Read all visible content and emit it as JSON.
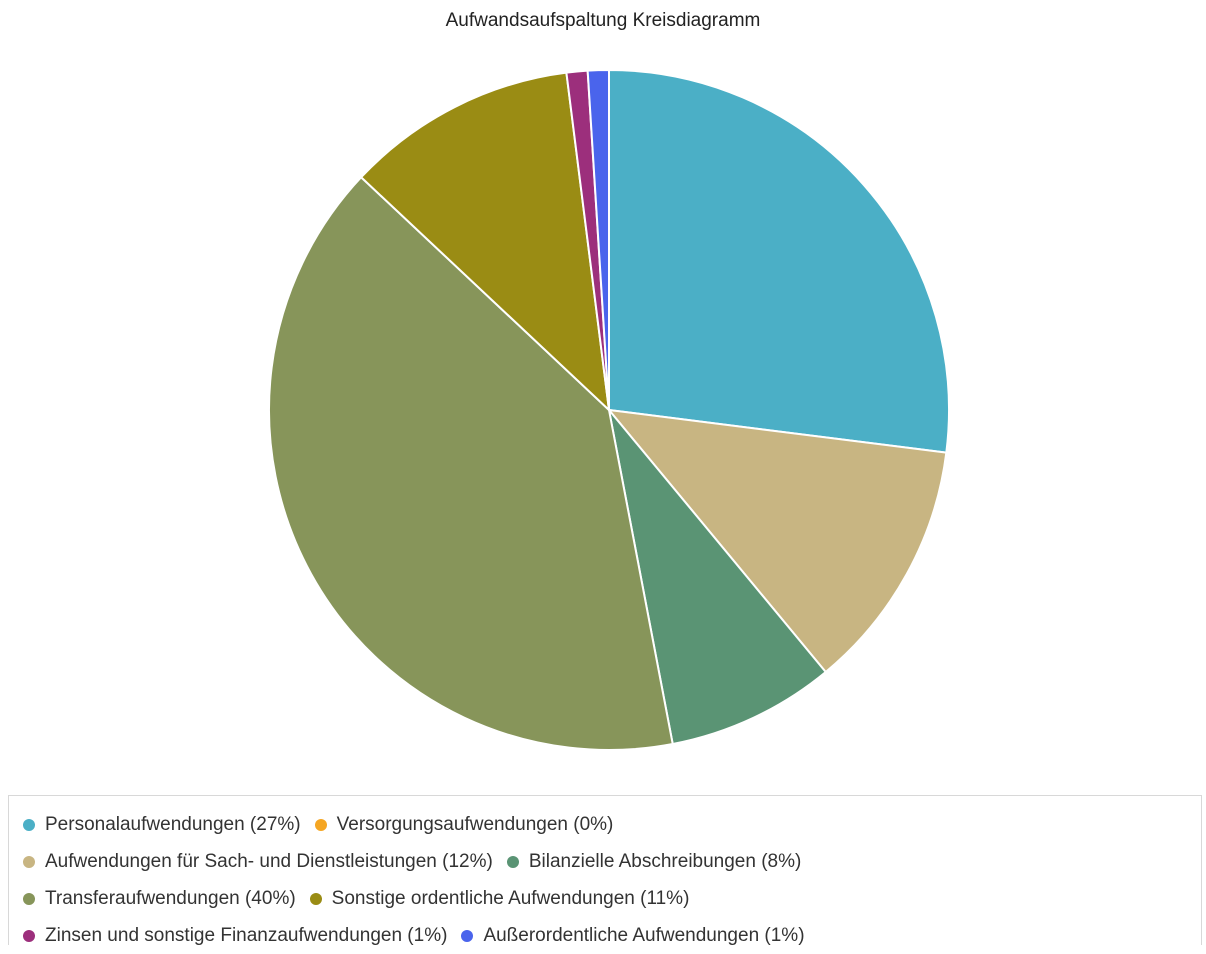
{
  "chart_data": {
    "type": "pie",
    "title": "Aufwandsaufspaltung Kreisdiagramm",
    "legend_position": "bottom",
    "slices": [
      {
        "label": "Personalaufwendungen (27%)",
        "value": 27,
        "color": "#4bafc6"
      },
      {
        "label": "Versorgungsaufwendungen (0%)",
        "value": 0,
        "color": "#f5a623"
      },
      {
        "label": "Aufwendungen für Sach- und Dienstleistungen (12%)",
        "value": 12,
        "color": "#c8b582"
      },
      {
        "label": "Bilanzielle Abschreibungen (8%)",
        "value": 8,
        "color": "#5a9474"
      },
      {
        "label": "Transferaufwendungen (40%)",
        "value": 40,
        "color": "#87955a"
      },
      {
        "label": "Sonstige ordentliche Aufwendungen (11%)",
        "value": 11,
        "color": "#9a8c14"
      },
      {
        "label": "Zinsen und sonstige Finanzaufwendungen (1%)",
        "value": 1,
        "color": "#9c2f7c"
      },
      {
        "label": "Außerordentliche Aufwendungen (1%)",
        "value": 1,
        "color": "#4a64ec"
      }
    ]
  }
}
